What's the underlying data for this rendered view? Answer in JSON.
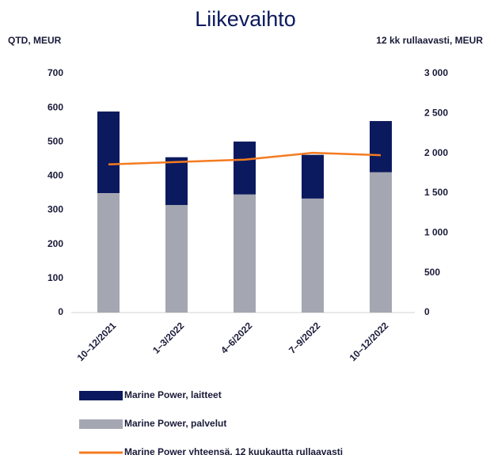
{
  "chart_data": {
    "type": "bar",
    "title": "Liikevaihto",
    "y_label": "QTD, MEUR",
    "y2_label": "12 kk rullaavasti, MEUR",
    "categories": [
      "10–12/2021",
      "1–3/2022",
      "4–6/2022",
      "7–9/2022",
      "10–12/2022"
    ],
    "series": [
      {
        "name": "Marine Power, laitteet",
        "color": "#0b1a5e",
        "values": [
          239,
          140,
          155,
          128,
          150
        ]
      },
      {
        "name": "Marine Power, palvelut",
        "color": "#a4a7b1",
        "values": [
          350,
          315,
          346,
          334,
          411
        ]
      },
      {
        "name": "Marine Power yhteensä, 12 kuukautta rullaavasti",
        "color": "#f47b20",
        "type": "line",
        "axis": "y2",
        "values": [
          1860,
          1890,
          1920,
          2005,
          1975
        ]
      }
    ],
    "ylim": [
      0,
      700
    ],
    "yticks": [
      0,
      100,
      200,
      300,
      400,
      500,
      600,
      700
    ],
    "y2lim": [
      0,
      3000
    ],
    "y2ticks": [
      0,
      500,
      {
        "value": 1000,
        "label": "1 000"
      },
      {
        "value": 1500,
        "label": "1 500"
      },
      {
        "value": 2000,
        "label": "2 000"
      },
      {
        "value": 2500,
        "label": "2 500"
      },
      {
        "value": 3000,
        "label": "3 000"
      }
    ],
    "stacked": true
  }
}
